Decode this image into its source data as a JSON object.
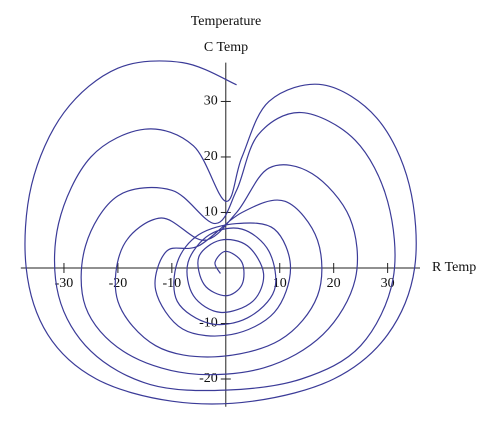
{
  "chart_data": {
    "type": "line",
    "title": "Temperature",
    "y_label": "C Temp",
    "x_label": "R Temp",
    "color": "#3b3b98",
    "xlim": [
      -38,
      36
    ],
    "ylim": [
      -25,
      37
    ],
    "xticks": [
      -30,
      -20,
      -10,
      10,
      20,
      30
    ],
    "yticks": [
      -20,
      -10,
      10,
      20,
      30
    ],
    "x": [
      2,
      -8,
      -20,
      -30,
      -36,
      -37,
      -33,
      -24,
      -10,
      5,
      20,
      30,
      35,
      34,
      28,
      18,
      8,
      3,
      0,
      -6,
      -15,
      -25,
      -31,
      -31,
      -25,
      -14,
      0,
      14,
      25,
      31,
      30,
      24,
      14,
      6,
      2,
      -2,
      -10,
      -20,
      -26,
      -26,
      -19,
      -7,
      7,
      18,
      24,
      23,
      16,
      8,
      2,
      -4,
      -12,
      -19,
      -20,
      -13,
      -2,
      10,
      17,
      17,
      11,
      3,
      -5,
      -11,
      -13,
      -8,
      1,
      9,
      12,
      9,
      2,
      -5,
      -9,
      -9,
      -3,
      4,
      9,
      8,
      3,
      -3,
      -7,
      -6,
      -1,
      5,
      7,
      4,
      -1,
      -5,
      -4,
      0,
      3,
      3,
      0,
      -2,
      -1
    ],
    "values": [
      33,
      37,
      36,
      28,
      15,
      0,
      -12,
      -20,
      -24,
      -24,
      -20,
      -12,
      0,
      15,
      27,
      33,
      30,
      20,
      12,
      22,
      25,
      20,
      8,
      -5,
      -15,
      -21,
      -22,
      -20,
      -14,
      -2,
      12,
      23,
      28,
      24,
      14,
      8,
      14,
      13,
      4,
      -7,
      -15,
      -19,
      -18,
      -12,
      -2,
      9,
      17,
      18,
      10,
      5,
      9,
      4,
      -6,
      -14,
      -16,
      -13,
      -5,
      5,
      12,
      10,
      4,
      3,
      -4,
      -11,
      -12,
      -8,
      0,
      7,
      8,
      6,
      1,
      -6,
      -10,
      -9,
      -4,
      3,
      7,
      6,
      1,
      -5,
      -8,
      -6,
      -1,
      4,
      5,
      2,
      -3,
      -5,
      -3,
      1,
      3,
      1,
      -1
    ]
  }
}
